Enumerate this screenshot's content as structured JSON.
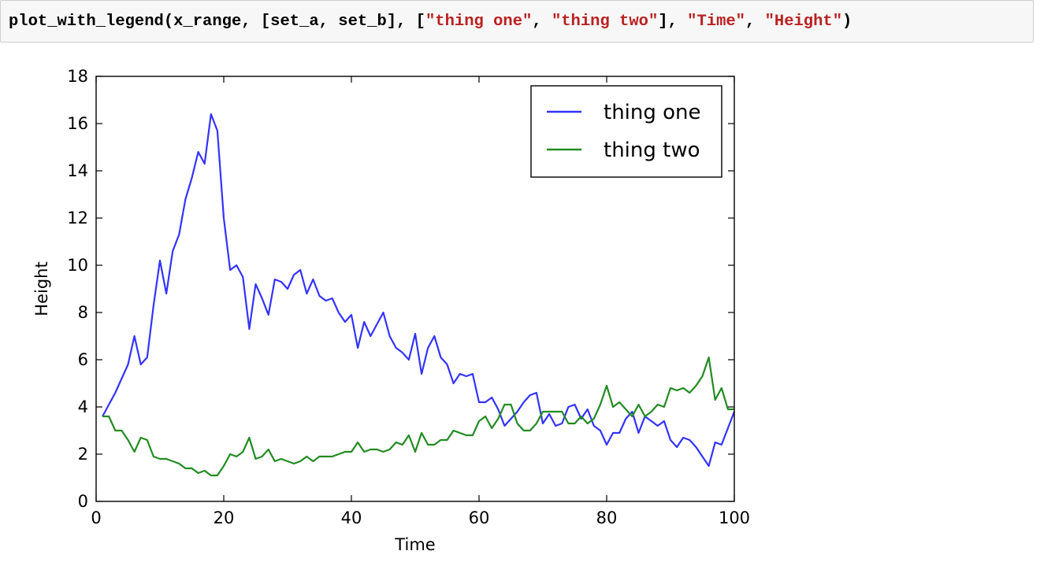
{
  "code_cell": {
    "tokens": [
      {
        "text": "plot_with_legend(x_range, [set_a, set_b], [",
        "kind": "plain"
      },
      {
        "text": "\"thing one\"",
        "kind": "str"
      },
      {
        "text": ", ",
        "kind": "plain"
      },
      {
        "text": "\"thing two\"",
        "kind": "str"
      },
      {
        "text": "], ",
        "kind": "plain"
      },
      {
        "text": "\"Time\"",
        "kind": "str"
      },
      {
        "text": ", ",
        "kind": "plain"
      },
      {
        "text": "\"Height\"",
        "kind": "str"
      },
      {
        "text": ")",
        "kind": "plain"
      }
    ]
  },
  "chart_data": {
    "type": "line",
    "xlabel": "Time",
    "ylabel": "Height",
    "xlim": [
      0,
      100
    ],
    "ylim": [
      0,
      18
    ],
    "xticks": [
      0,
      20,
      40,
      60,
      80,
      100
    ],
    "yticks": [
      0,
      2,
      4,
      6,
      8,
      10,
      12,
      14,
      16,
      18
    ],
    "grid": false,
    "legend_position": "top-right",
    "series": [
      {
        "name": "thing one",
        "color": "#3333ff",
        "x": [
          1,
          2,
          3,
          4,
          5,
          6,
          7,
          8,
          9,
          10,
          11,
          12,
          13,
          14,
          15,
          16,
          17,
          18,
          19,
          20,
          21,
          22,
          23,
          24,
          25,
          26,
          27,
          28,
          29,
          30,
          31,
          32,
          33,
          34,
          35,
          36,
          37,
          38,
          39,
          40,
          41,
          42,
          43,
          44,
          45,
          46,
          47,
          48,
          49,
          50,
          51,
          52,
          53,
          54,
          55,
          56,
          57,
          58,
          59,
          60,
          61,
          62,
          63,
          64,
          65,
          66,
          67,
          68,
          69,
          70,
          71,
          72,
          73,
          74,
          75,
          76,
          77,
          78,
          79,
          80,
          81,
          82,
          83,
          84,
          85,
          86,
          87,
          88,
          89,
          90,
          91,
          92,
          93,
          94,
          95,
          96,
          97,
          98,
          99,
          100
        ],
        "y": [
          3.6,
          4.1,
          4.6,
          5.2,
          5.8,
          7.0,
          5.8,
          6.1,
          8.3,
          10.2,
          8.8,
          10.6,
          11.3,
          12.8,
          13.7,
          14.8,
          14.3,
          16.4,
          15.7,
          12.0,
          9.8,
          10.0,
          9.5,
          7.3,
          9.2,
          8.6,
          7.9,
          9.4,
          9.3,
          9.0,
          9.6,
          9.8,
          8.8,
          9.4,
          8.7,
          8.5,
          8.6,
          8.0,
          7.6,
          7.9,
          6.5,
          7.6,
          7.0,
          7.5,
          8.0,
          7.0,
          6.5,
          6.3,
          6.0,
          7.1,
          5.4,
          6.5,
          7.0,
          6.1,
          5.8,
          5.0,
          5.4,
          5.3,
          5.4,
          4.2,
          4.2,
          4.4,
          3.9,
          3.2,
          3.5,
          3.8,
          4.2,
          4.5,
          4.6,
          3.3,
          3.7,
          3.2,
          3.3,
          4.0,
          4.1,
          3.5,
          3.9,
          3.2,
          3.0,
          2.4,
          2.9,
          2.9,
          3.5,
          3.8,
          2.9,
          3.6,
          3.4,
          3.2,
          3.4,
          2.6,
          2.3,
          2.7,
          2.6,
          2.3,
          1.9,
          1.5,
          2.5,
          2.4,
          3.1,
          3.8
        ]
      },
      {
        "name": "thing two",
        "color": "#228b22",
        "x": [
          1,
          2,
          3,
          4,
          5,
          6,
          7,
          8,
          9,
          10,
          11,
          12,
          13,
          14,
          15,
          16,
          17,
          18,
          19,
          20,
          21,
          22,
          23,
          24,
          25,
          26,
          27,
          28,
          29,
          30,
          31,
          32,
          33,
          34,
          35,
          36,
          37,
          38,
          39,
          40,
          41,
          42,
          43,
          44,
          45,
          46,
          47,
          48,
          49,
          50,
          51,
          52,
          53,
          54,
          55,
          56,
          57,
          58,
          59,
          60,
          61,
          62,
          63,
          64,
          65,
          66,
          67,
          68,
          69,
          70,
          71,
          72,
          73,
          74,
          75,
          76,
          77,
          78,
          79,
          80,
          81,
          82,
          83,
          84,
          85,
          86,
          87,
          88,
          89,
          90,
          91,
          92,
          93,
          94,
          95,
          96,
          97,
          98,
          99,
          100
        ],
        "y": [
          3.6,
          3.6,
          3.0,
          3.0,
          2.6,
          2.1,
          2.7,
          2.6,
          1.9,
          1.8,
          1.8,
          1.7,
          1.6,
          1.4,
          1.4,
          1.2,
          1.3,
          1.1,
          1.1,
          1.5,
          2.0,
          1.9,
          2.1,
          2.7,
          1.8,
          1.9,
          2.2,
          1.7,
          1.8,
          1.7,
          1.6,
          1.7,
          1.9,
          1.7,
          1.9,
          1.9,
          1.9,
          2.0,
          2.1,
          2.1,
          2.5,
          2.1,
          2.2,
          2.2,
          2.1,
          2.2,
          2.5,
          2.4,
          2.8,
          2.1,
          2.9,
          2.4,
          2.4,
          2.6,
          2.6,
          3.0,
          2.9,
          2.8,
          2.8,
          3.4,
          3.6,
          3.1,
          3.5,
          4.1,
          4.1,
          3.3,
          3.0,
          3.0,
          3.3,
          3.8,
          3.8,
          3.8,
          3.8,
          3.3,
          3.3,
          3.6,
          3.3,
          3.5,
          4.1,
          4.9,
          4.0,
          4.2,
          3.9,
          3.6,
          4.1,
          3.6,
          3.8,
          4.1,
          4.0,
          4.8,
          4.7,
          4.8,
          4.6,
          4.9,
          5.3,
          6.1,
          4.3,
          4.8,
          3.9,
          3.9
        ]
      }
    ]
  }
}
